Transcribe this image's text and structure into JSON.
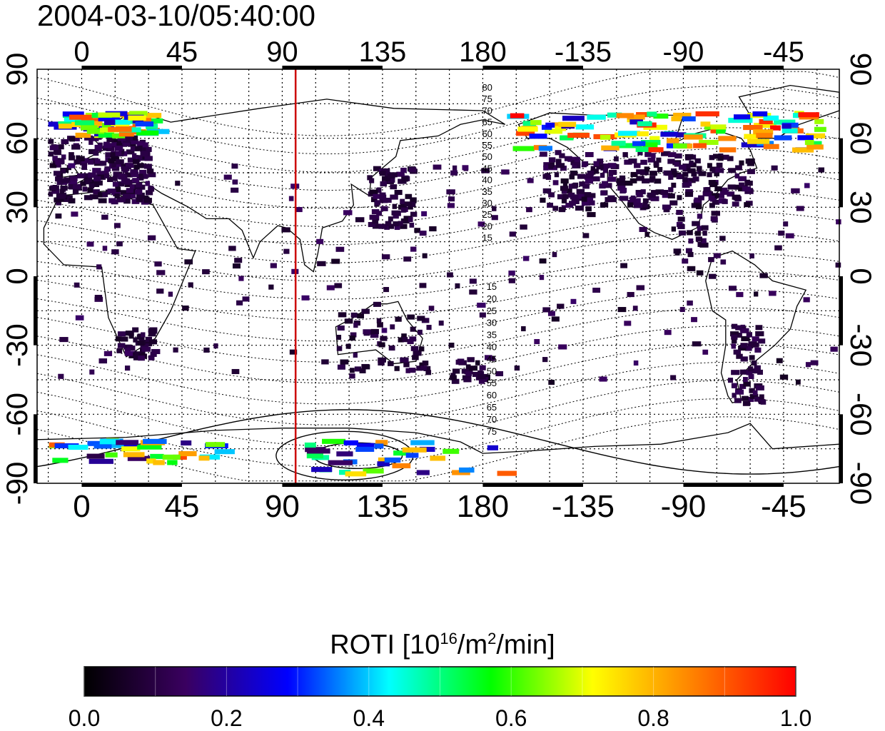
{
  "title": "2004-03-10/05:40:00",
  "map": {
    "lon_ticks": [
      "0",
      "45",
      "90",
      "135",
      "180",
      "-135",
      "-90",
      "-45"
    ],
    "lat_ticks_left": [
      "90",
      "60",
      "30",
      "0",
      "-30",
      "-60",
      "-90"
    ],
    "lat_ticks_right": [
      "90",
      "60",
      "30",
      "0",
      "-30",
      "-60",
      "-90"
    ],
    "lon_range": [
      -20,
      340
    ],
    "lat_range": [
      -90,
      90
    ],
    "grid": "dotted",
    "terminator_longitude": 96,
    "terminator_color": "#cc0000",
    "magnetic_latitude_labels_north": [
      "80",
      "75",
      "70",
      "65",
      "60",
      "55",
      "50",
      "45",
      "40",
      "35",
      "30",
      "25",
      "20",
      "15"
    ],
    "magnetic_latitude_labels_south": [
      "15",
      "20",
      "25",
      "30",
      "35",
      "40",
      "45",
      "50",
      "55",
      "60",
      "65",
      "70",
      "75"
    ]
  },
  "colorbar": {
    "label_main": "ROTI  [10",
    "label_exp1": "16",
    "label_mid": "/m",
    "label_exp2": "2",
    "label_end": "/min]",
    "ticks": [
      "0.0",
      "0.2",
      "0.4",
      "0.6",
      "0.8",
      "1.0"
    ],
    "range": [
      0.0,
      1.0
    ],
    "colors": [
      "#000000",
      "#3a0060",
      "#0000ff",
      "#00ffff",
      "#00ff00",
      "#ffff00",
      "#ff8000",
      "#ff0000"
    ]
  }
}
